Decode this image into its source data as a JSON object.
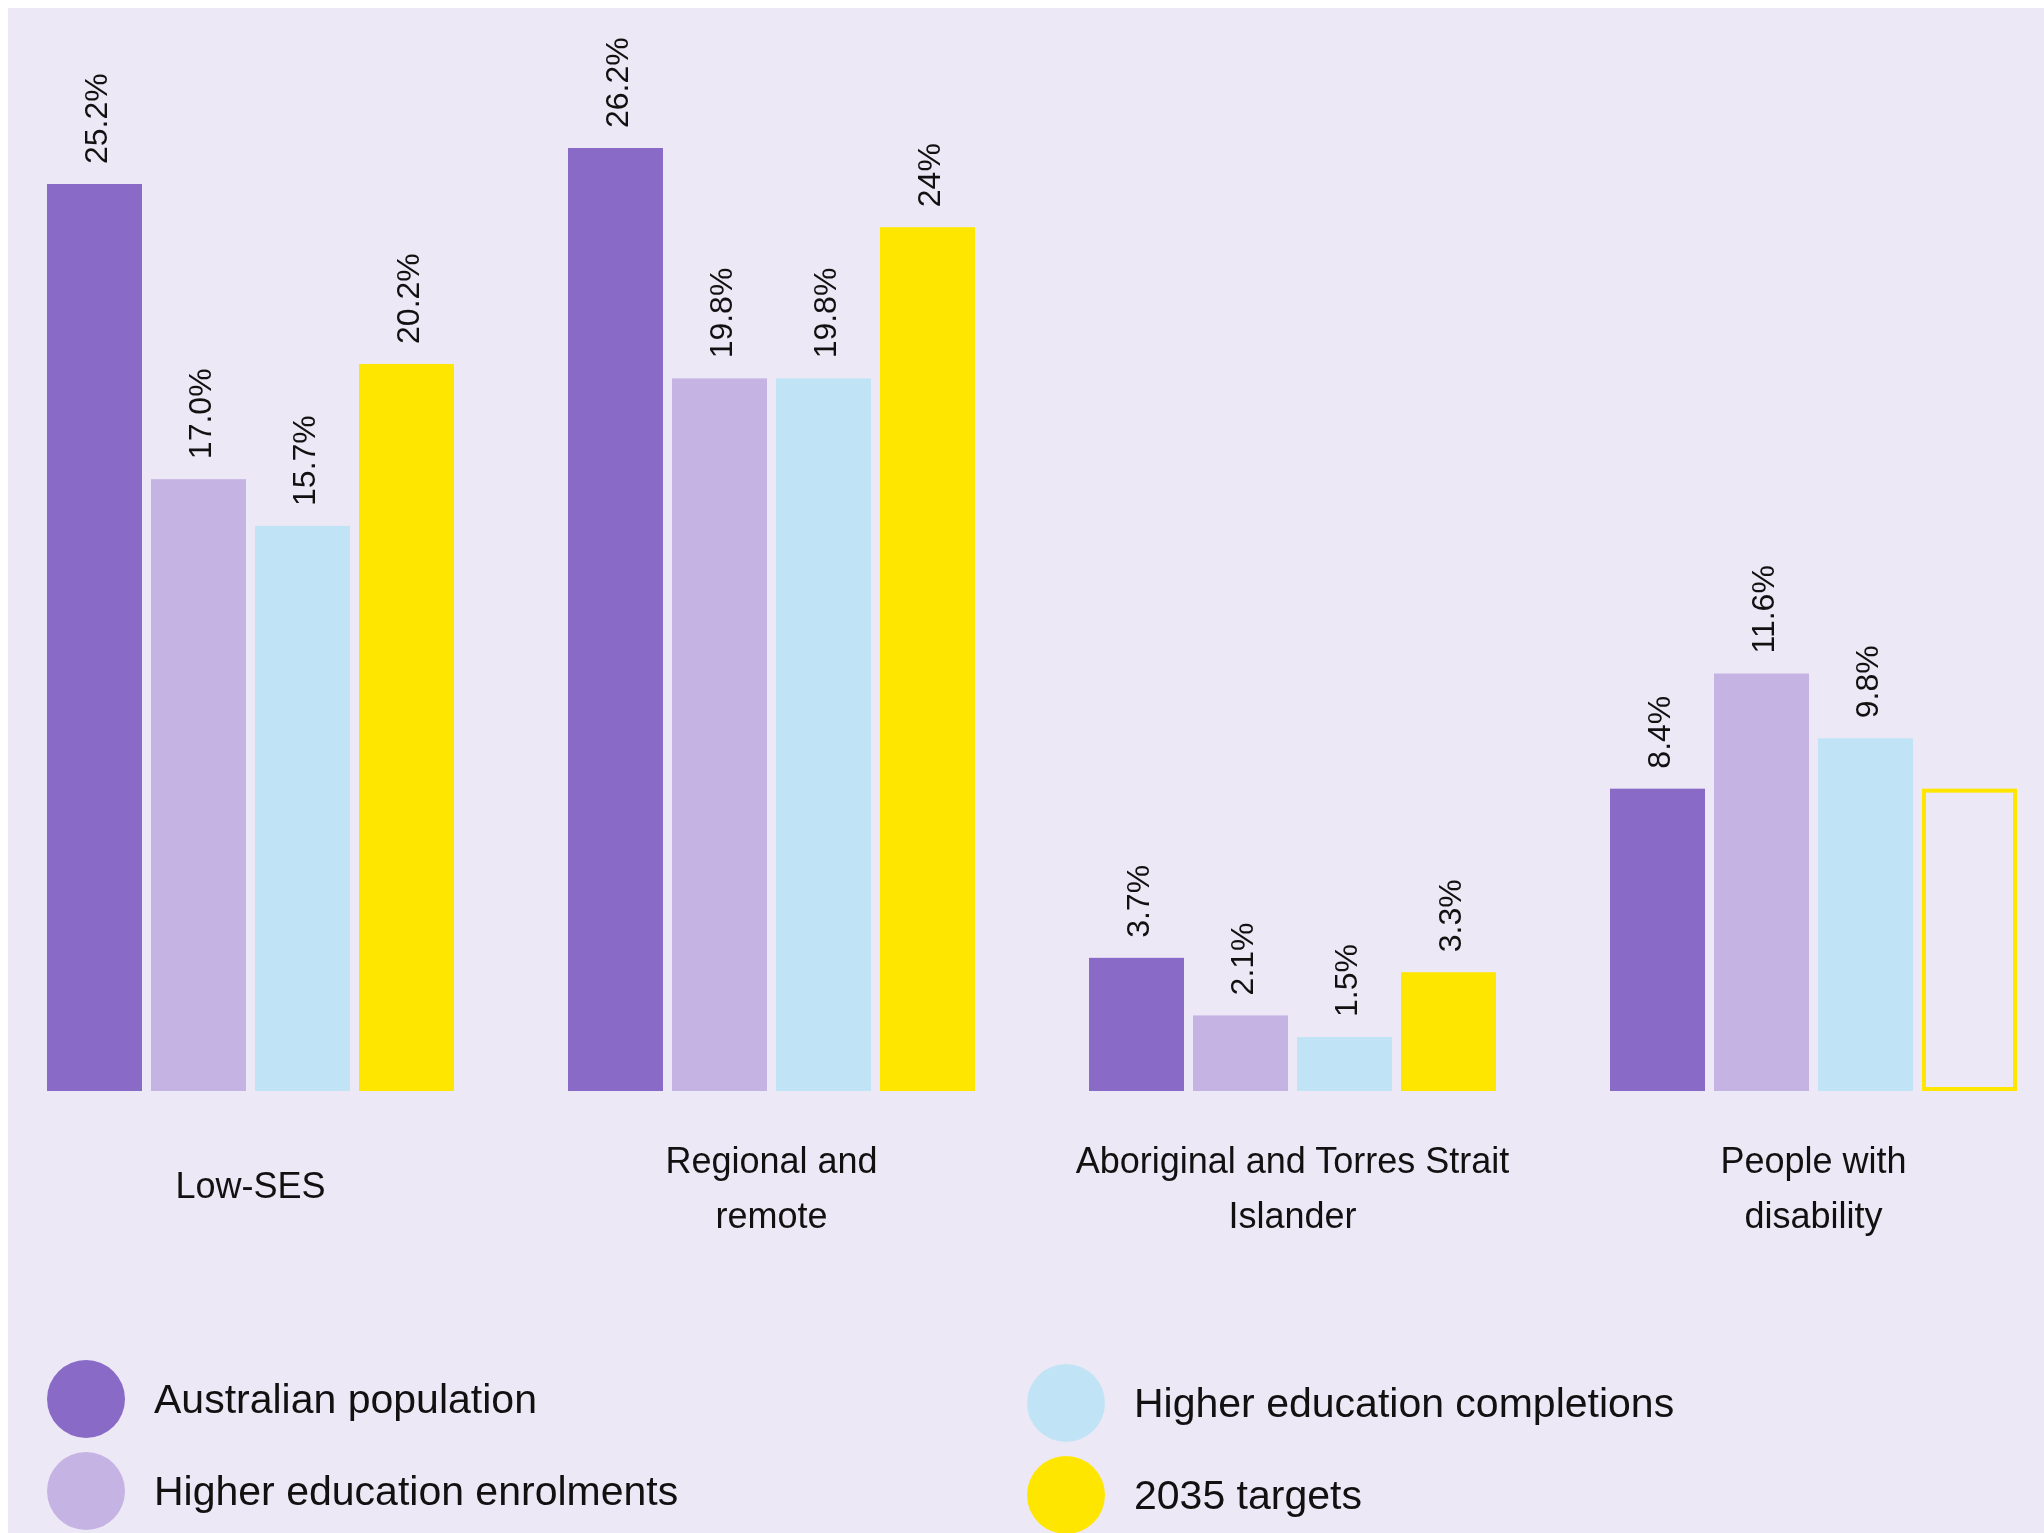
{
  "chart_data": {
    "type": "bar",
    "categories": [
      "Low-SES",
      "Regional and remote",
      "Aboriginal and Torres Strait Islander",
      "People with disability"
    ],
    "series": [
      {
        "name": "Australian population",
        "color": "#8a6ac7",
        "values": [
          25.2,
          26.2,
          3.7,
          8.4
        ],
        "value_labels": [
          "25.2%",
          "26.2%",
          "3.7%",
          "8.4%"
        ]
      },
      {
        "name": "Higher education enrolments",
        "color": "#c5b4e3",
        "values": [
          17.0,
          19.8,
          2.1,
          11.6
        ],
        "value_labels": [
          "17.0%",
          "19.8%",
          "2.1%",
          "11.6%"
        ]
      },
      {
        "name": "Higher education completions",
        "color": "#c0e4f5",
        "values": [
          15.7,
          19.8,
          1.5,
          9.8
        ],
        "value_labels": [
          "15.7%",
          "19.8%",
          "1.5%",
          "9.8%"
        ]
      },
      {
        "name": "2035 targets",
        "color": "#ffe600",
        "colors": [
          "#ffe600",
          "#ffe600",
          "#ffe600",
          "#ede8f5"
        ],
        "values": [
          20.2,
          24,
          3.3,
          8.4
        ],
        "value_labels": [
          "20.2%",
          "24%",
          "3.3%",
          null
        ]
      }
    ],
    "legend": "bottom"
  }
}
